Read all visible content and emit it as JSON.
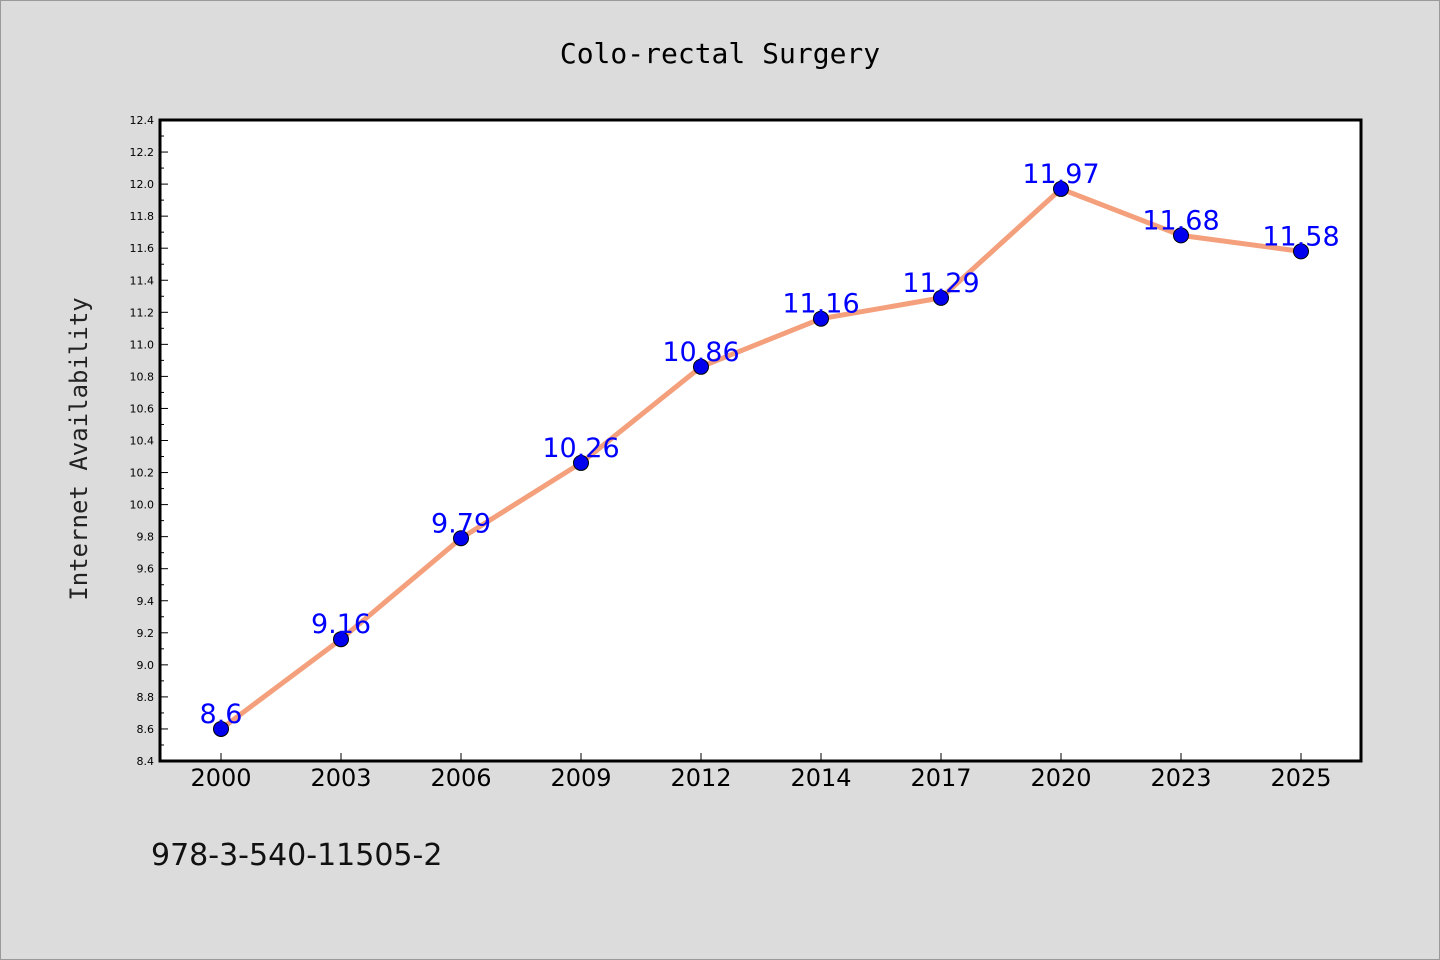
{
  "colors": {
    "background": "#dcdcdc",
    "plot_area": "#ffffff",
    "line": "#f4a07c",
    "marker": "#0000ee",
    "data_label": "#0000ff",
    "text": "#000000"
  },
  "footer_text": "978-3-540-11505-2",
  "chart_data": {
    "type": "line",
    "title": "Colo-rectal Surgery",
    "xlabel": "",
    "ylabel": "Internet Availability",
    "categories": [
      "2000",
      "2003",
      "2006",
      "2009",
      "2012",
      "2014",
      "2017",
      "2020",
      "2023",
      "2025"
    ],
    "series": [
      {
        "values": [
          8.6,
          9.16,
          9.79,
          10.26,
          10.86,
          11.16,
          11.29,
          11.97,
          11.68,
          11.58
        ],
        "data_labels": [
          "8.6",
          "9.16",
          "9.79",
          "10.26",
          "10.86",
          "11.16",
          "11.29",
          "11.97",
          "11.68",
          "11.58"
        ]
      }
    ],
    "ylim": [
      8.4,
      12.4
    ],
    "yticks": [
      "8.4",
      "8.6",
      "8.8",
      "9.0",
      "9.2",
      "9.4",
      "9.6",
      "9.8",
      "10.0",
      "10.2",
      "10.4",
      "10.6",
      "10.8",
      "11.0",
      "11.2",
      "11.4",
      "11.6",
      "11.8",
      "12.0",
      "12.2",
      "12.4"
    ],
    "grid": false,
    "legend": "none"
  }
}
